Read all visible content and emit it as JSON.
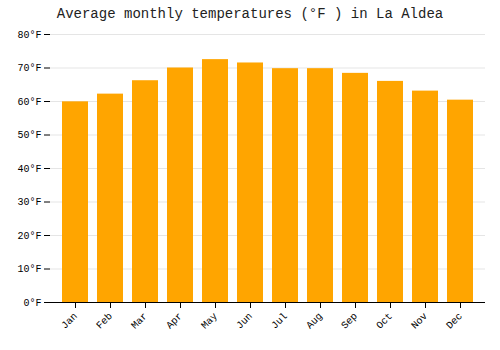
{
  "chart_data": {
    "type": "bar",
    "title": "Average monthly temperatures (°F ) in La Aldea",
    "categories": [
      "Jan",
      "Feb",
      "Mar",
      "Apr",
      "May",
      "Jun",
      "Jul",
      "Aug",
      "Sep",
      "Oct",
      "Nov",
      "Dec"
    ],
    "values": [
      59.9,
      62.2,
      66.2,
      70.0,
      72.5,
      71.5,
      69.8,
      69.8,
      68.4,
      66.0,
      63.1,
      60.4
    ],
    "color": "#FFA500",
    "ylim": [
      0,
      80
    ],
    "yticks": [
      {
        "value": 0,
        "label": "0°F"
      },
      {
        "value": 10,
        "label": "10°F"
      },
      {
        "value": 20,
        "label": "20°F"
      },
      {
        "value": 30,
        "label": "30°F"
      },
      {
        "value": 40,
        "label": "40°F"
      },
      {
        "value": 50,
        "label": "50°F"
      },
      {
        "value": 60,
        "label": "60°F"
      },
      {
        "value": 70,
        "label": "70°F"
      },
      {
        "value": 80,
        "label": "80°F"
      }
    ],
    "grid": true
  }
}
